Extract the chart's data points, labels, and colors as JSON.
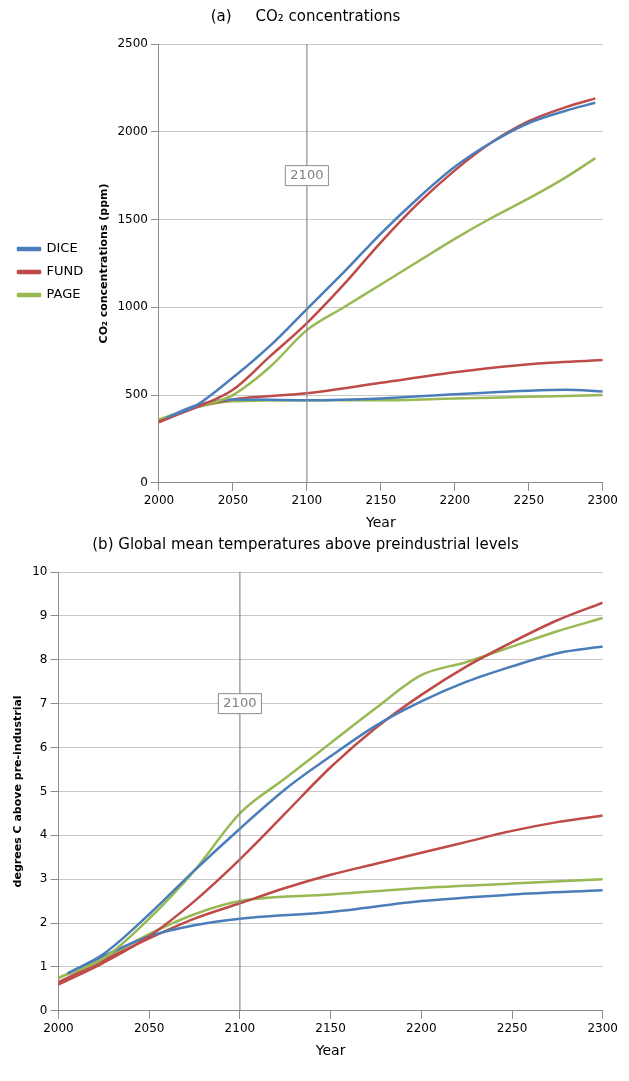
{
  "chart_data": [
    {
      "type": "line",
      "title": "(a)     CO₂ concentrations",
      "xlabel": "Year",
      "ylabel": "CO₂ concentrations (ppm)",
      "xlim": [
        2000,
        2300
      ],
      "xticks": [
        2000,
        2050,
        2100,
        2150,
        2200,
        2250,
        2300
      ],
      "ylim": [
        0,
        2500
      ],
      "yticks": [
        0,
        500,
        1000,
        1500,
        2000,
        2500
      ],
      "grid": "y",
      "legend": "left",
      "marker": "none",
      "ref_lines": [
        {
          "axis": "x",
          "value": 2100,
          "label": "2100"
        }
      ],
      "series": [
        {
          "name": "DICE",
          "color": "#4a7ebb",
          "x": [
            2005,
            2025,
            2050,
            2075,
            2100,
            2125,
            2150,
            2175,
            2200,
            2225,
            2250,
            2275,
            2295
          ],
          "values": [
            370,
            440,
            600,
            780,
            990,
            1200,
            1420,
            1620,
            1800,
            1940,
            2050,
            2120,
            2165
          ]
        },
        {
          "name": "FUND",
          "color": "#be4b48",
          "x": [
            2000,
            2025,
            2050,
            2075,
            2100,
            2125,
            2150,
            2175,
            2200,
            2225,
            2250,
            2275,
            2295
          ],
          "values": [
            350,
            430,
            530,
            720,
            910,
            1130,
            1370,
            1590,
            1780,
            1940,
            2060,
            2140,
            2190
          ]
        },
        {
          "name": "PAGE",
          "color": "#98b954",
          "x": [
            2000,
            2025,
            2050,
            2075,
            2100,
            2125,
            2150,
            2175,
            2200,
            2225,
            2250,
            2275,
            2295
          ],
          "values": [
            360,
            430,
            500,
            660,
            870,
            1000,
            1130,
            1260,
            1390,
            1510,
            1620,
            1740,
            1850
          ]
        },
        {
          "color": "#4a7ebb",
          "x": [
            2005,
            2025,
            2050,
            2100,
            2150,
            2200,
            2250,
            2275,
            2300
          ],
          "values": [
            370,
            440,
            475,
            470,
            480,
            505,
            525,
            530,
            520
          ]
        },
        {
          "color": "#be4b48",
          "x": [
            2000,
            2025,
            2050,
            2100,
            2150,
            2200,
            2250,
            2300
          ],
          "values": [
            345,
            430,
            475,
            510,
            570,
            630,
            675,
            700
          ]
        },
        {
          "color": "#98b954",
          "x": [
            2000,
            2025,
            2050,
            2100,
            2150,
            2200,
            2250,
            2300
          ],
          "values": [
            360,
            430,
            465,
            470,
            470,
            480,
            490,
            500
          ]
        }
      ]
    },
    {
      "type": "line",
      "title": "(b) Global mean temperatures above preindustrial levels",
      "xlabel": "Year",
      "ylabel": "degrees C above pre-industrial",
      "xlim": [
        2000,
        2300
      ],
      "xticks": [
        2000,
        2050,
        2100,
        2150,
        2200,
        2250,
        2300
      ],
      "ylim": [
        0,
        10
      ],
      "yticks": [
        0,
        1,
        2,
        3,
        4,
        5,
        6,
        7,
        8,
        9,
        10
      ],
      "grid": "y",
      "marker": "none",
      "ref_lines": [
        {
          "axis": "x",
          "value": 2100,
          "label": "2100"
        }
      ],
      "series": [
        {
          "color": "#4a7ebb",
          "x": [
            2005,
            2025,
            2050,
            2075,
            2100,
            2125,
            2150,
            2175,
            2200,
            2225,
            2250,
            2275,
            2300
          ],
          "values": [
            0.85,
            1.3,
            2.2,
            3.2,
            4.15,
            5.05,
            5.8,
            6.5,
            7.05,
            7.5,
            7.85,
            8.15,
            8.3
          ]
        },
        {
          "color": "#be4b48",
          "x": [
            2000,
            2025,
            2050,
            2075,
            2100,
            2125,
            2150,
            2175,
            2200,
            2225,
            2250,
            2275,
            2300
          ],
          "values": [
            0.6,
            1.1,
            1.7,
            2.5,
            3.45,
            4.5,
            5.55,
            6.45,
            7.2,
            7.85,
            8.4,
            8.9,
            9.3
          ]
        },
        {
          "color": "#98b954",
          "x": [
            2000,
            2025,
            2050,
            2075,
            2100,
            2125,
            2150,
            2175,
            2200,
            2225,
            2250,
            2275,
            2300
          ],
          "values": [
            0.75,
            1.2,
            2.1,
            3.2,
            4.5,
            5.3,
            6.1,
            6.9,
            7.65,
            7.95,
            8.3,
            8.65,
            8.95
          ]
        },
        {
          "color": "#4a7ebb",
          "x": [
            2005,
            2025,
            2050,
            2075,
            2100,
            2150,
            2200,
            2250,
            2300
          ],
          "values": [
            0.85,
            1.25,
            1.7,
            1.95,
            2.1,
            2.25,
            2.5,
            2.65,
            2.75
          ]
        },
        {
          "color": "#be4b48",
          "x": [
            2000,
            2025,
            2050,
            2075,
            2100,
            2125,
            2150,
            2175,
            2200,
            2225,
            2250,
            2275,
            2300
          ],
          "values": [
            0.65,
            1.15,
            1.65,
            2.1,
            2.45,
            2.8,
            3.1,
            3.35,
            3.6,
            3.85,
            4.1,
            4.3,
            4.45
          ]
        },
        {
          "color": "#98b954",
          "x": [
            2000,
            2025,
            2050,
            2075,
            2100,
            2150,
            2200,
            2250,
            2300
          ],
          "values": [
            0.75,
            1.2,
            1.75,
            2.2,
            2.5,
            2.65,
            2.8,
            2.9,
            3.0
          ]
        }
      ]
    }
  ]
}
